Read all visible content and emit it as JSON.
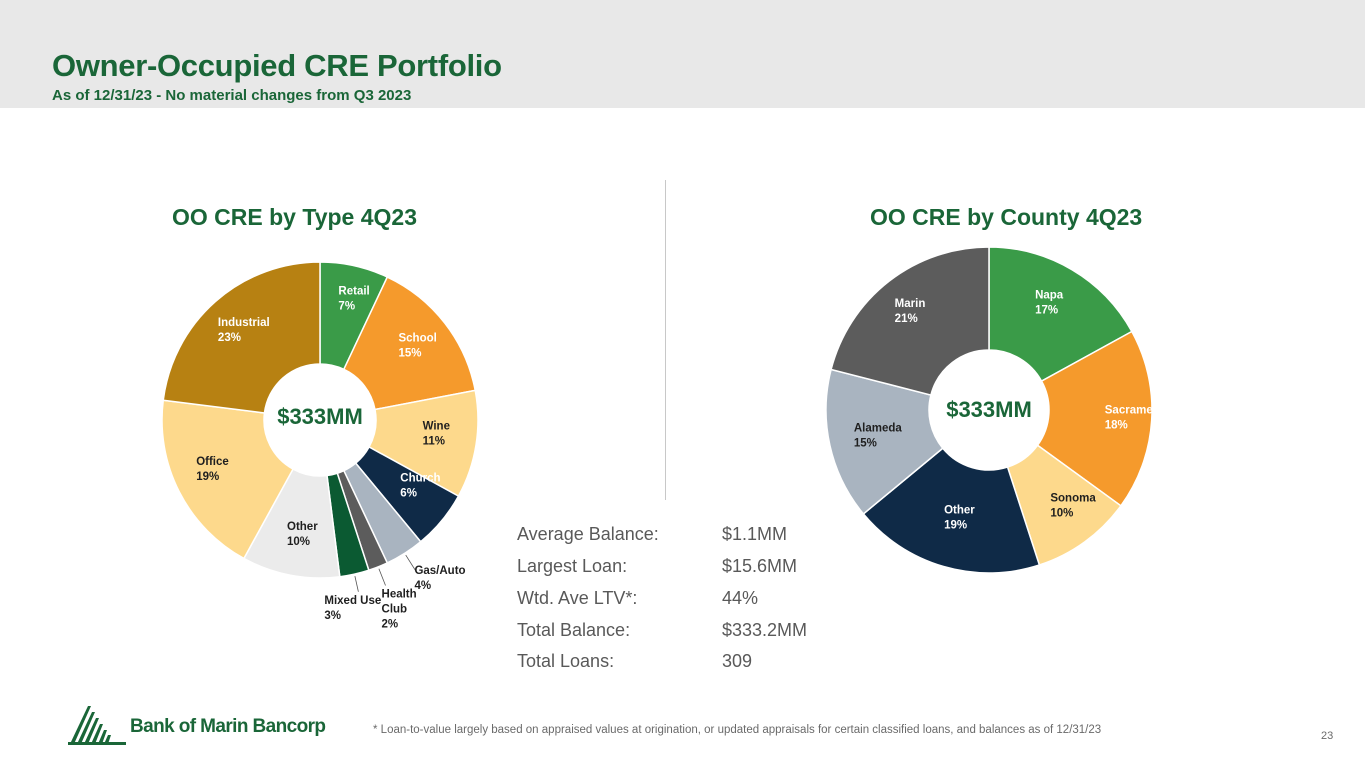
{
  "header": {
    "title": "Owner-Occupied CRE Portfolio",
    "subtitle": "As of 12/31/23 - No material changes from Q3 2023"
  },
  "chart_data": [
    {
      "type": "pie",
      "title": "OO CRE by Type 4Q23",
      "center_label": "$333MM",
      "slices": [
        {
          "label": "Retail",
          "value": 7,
          "display": "7%",
          "color": "#3a9b48",
          "text_color": "#ffffff"
        },
        {
          "label": "School",
          "value": 15,
          "display": "15%",
          "color": "#f59a2c",
          "text_color": "#ffffff"
        },
        {
          "label": "Wine",
          "value": 11,
          "display": "11%",
          "color": "#fdd98c",
          "text_color": "#1f1f1f"
        },
        {
          "label": "Church",
          "value": 6,
          "display": "6%",
          "color": "#0f2a47",
          "text_color": "#ffffff"
        },
        {
          "label": "Gas/Auto",
          "value": 4,
          "display": "4%",
          "color": "#a9b4c0",
          "text_color": "#1f1f1f"
        },
        {
          "label": "Health Club",
          "value": 2,
          "display": "2%",
          "color": "#5c5c5c",
          "text_color": "#1f1f1f"
        },
        {
          "label": "Mixed Use",
          "value": 3,
          "display": "3%",
          "color": "#0b5a32",
          "text_color": "#1f1f1f"
        },
        {
          "label": "Other",
          "value": 10,
          "display": "10%",
          "color": "#ebebeb",
          "text_color": "#1f1f1f"
        },
        {
          "label": "Office",
          "value": 19,
          "display": "19%",
          "color": "#fdd98c",
          "text_color": "#1f1f1f"
        },
        {
          "label": "Industrial",
          "value": 23,
          "display": "23%",
          "color": "#b78112",
          "text_color": "#ffffff"
        }
      ]
    },
    {
      "type": "pie",
      "title": "OO CRE by County 4Q23",
      "center_label": "$333MM",
      "slices": [
        {
          "label": "Napa",
          "value": 17,
          "display": "17%",
          "color": "#3a9b48",
          "text_color": "#ffffff"
        },
        {
          "label": "Sacramento",
          "value": 18,
          "display": "18%",
          "color": "#f59a2c",
          "text_color": "#ffffff"
        },
        {
          "label": "Sonoma",
          "value": 10,
          "display": "10%",
          "color": "#fdd98c",
          "text_color": "#1f1f1f"
        },
        {
          "label": "Other",
          "value": 19,
          "display": "19%",
          "color": "#0f2a47",
          "text_color": "#ffffff"
        },
        {
          "label": "Alameda",
          "value": 15,
          "display": "15%",
          "color": "#a9b4c0",
          "text_color": "#1f1f1f"
        },
        {
          "label": "Marin",
          "value": 21,
          "display": "21%",
          "color": "#5c5c5c",
          "text_color": "#ffffff"
        }
      ]
    }
  ],
  "stats": [
    {
      "label": "Average Balance:",
      "value": "$1.1MM"
    },
    {
      "label": "Largest Loan:",
      "value": "$15.6MM"
    },
    {
      "label": "Wtd. Ave LTV*:",
      "value": "44%"
    },
    {
      "label": "Total Balance:",
      "value": "$333.2MM"
    },
    {
      "label": "Total Loans:",
      "value": "309"
    }
  ],
  "footnote": "*  Loan-to-value largely based on appraised values at origination, or updated appraisals for certain classified loans, and balances as of 12/31/23",
  "page_number": "23",
  "logo": {
    "text": "Bank of Marin Bancorp",
    "color": "#1a6638"
  }
}
